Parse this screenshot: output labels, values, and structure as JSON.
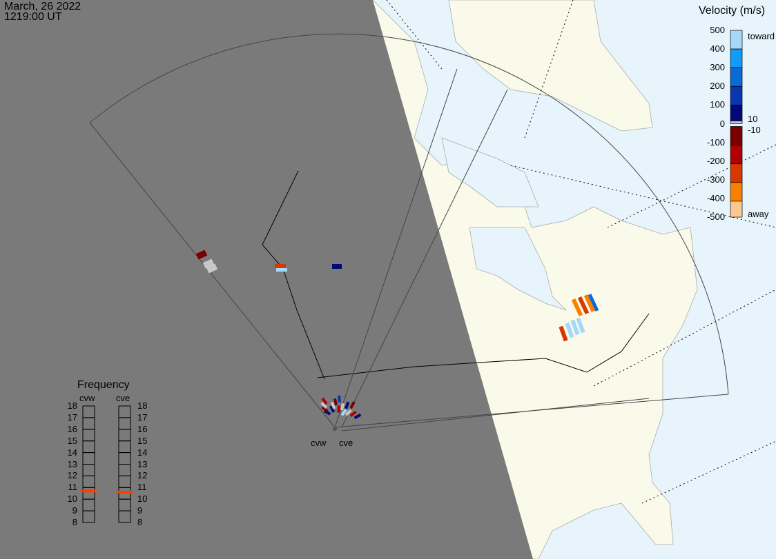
{
  "header": {
    "date": "March, 26 2022",
    "time": "1219:00 UT"
  },
  "velocity_scale": {
    "title": "Velocity (m/s)",
    "ticks": [
      "500",
      "400",
      "300",
      "200",
      "100",
      "0",
      "-100",
      "-200",
      "-300",
      "-400",
      "-500"
    ],
    "toward_label": "toward",
    "away_label": "away",
    "gs_upper": "10",
    "gs_lower": "-10",
    "colors": [
      "#a8d8f8",
      "#109cf8",
      "#0a6ad8",
      "#0838b0",
      "#000a78",
      "#7a0000",
      "#b00000",
      "#d83800",
      "#fc8000",
      "#fcc890"
    ],
    "ground_scatter_color": "#c8c8c8"
  },
  "frequency": {
    "title": "Frequency",
    "unit_range": [
      8,
      18
    ],
    "ticks": [
      "18",
      "17",
      "16",
      "15",
      "14",
      "13",
      "12",
      "11",
      "10",
      "9",
      "8"
    ],
    "radars": [
      {
        "name": "cvw",
        "value_mhz": 10.7
      },
      {
        "name": "cve",
        "value_mhz": 10.6
      }
    ],
    "marker_color": "#ff3c00"
  },
  "radar_labels": [
    "cvw",
    "cve"
  ],
  "colors": {
    "ocean": "#e8f4fc",
    "land": "#fafaeb",
    "night": "#7a7a7a"
  }
}
